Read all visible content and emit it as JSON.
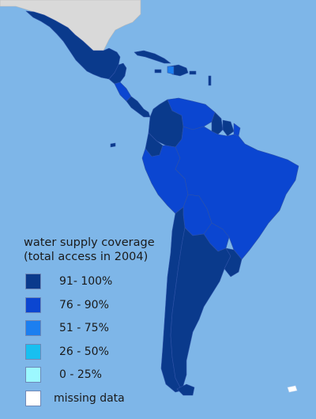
{
  "legend": {
    "title": "water supply coverage",
    "subtitle": "(total access in 2004)",
    "items": [
      {
        "label": "91- 100%",
        "color": "#0a3a8c"
      },
      {
        "label": "76 - 90%",
        "color": "#0b46d1"
      },
      {
        "label": "51 - 75%",
        "color": "#1c7ff0"
      },
      {
        "label": "26 - 50%",
        "color": "#18bff0"
      },
      {
        "label": "0 - 25%",
        "color": "#9cf8ff"
      },
      {
        "label": "missing data",
        "color": "#ffffff"
      }
    ]
  },
  "colors": {
    "ocean": "#7eb6e8",
    "other_land": "#d9d9d9"
  }
}
